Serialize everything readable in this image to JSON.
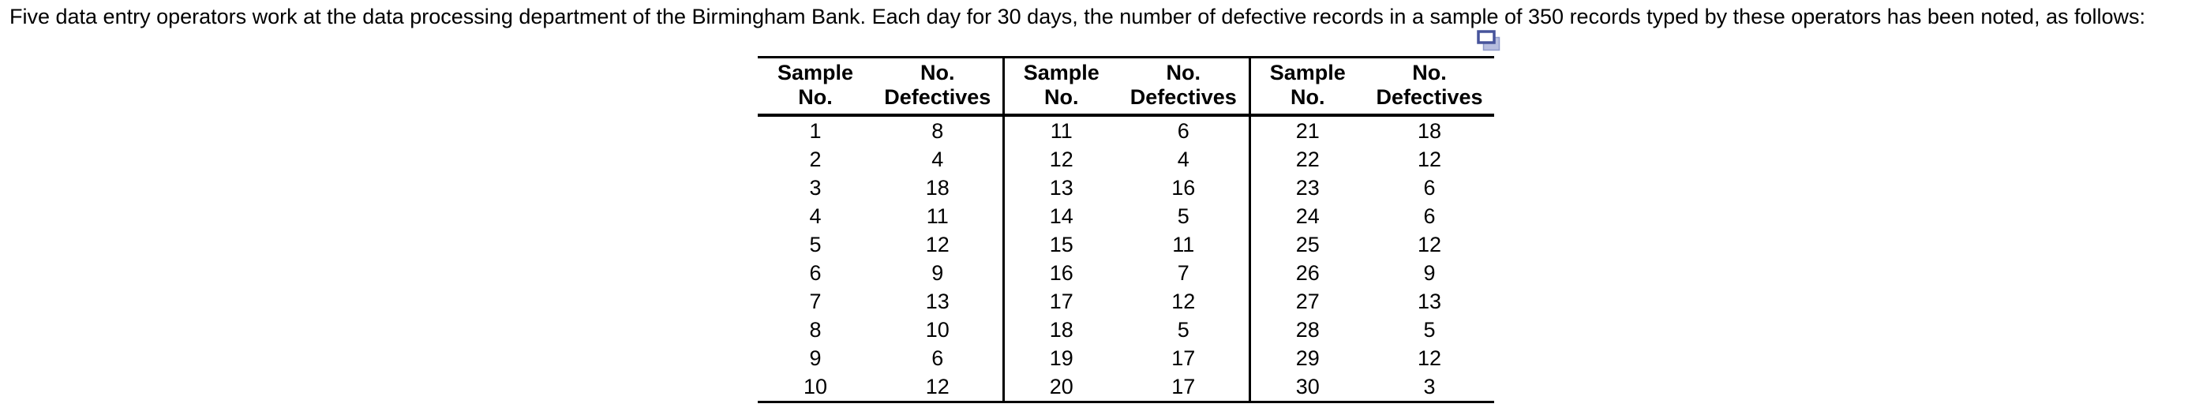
{
  "problem_text": "Five data entry operators work at the data processing department of the Birmingham Bank. Each day for 30 days, the number of defective records in a sample of 350 records typed by these operators has been noted, as follows:",
  "icon": {
    "name": "copy-icon"
  },
  "colors": {
    "text": "#000000",
    "table_rule": "#000000",
    "icon_front_border": "#47549b",
    "icon_front_fill": "#ffffff",
    "icon_back_fill": "#b7bedf",
    "icon_back_border": "#8e99c9"
  },
  "table": {
    "headers": [
      {
        "line1": "Sample",
        "line2": "No."
      },
      {
        "line1": "No.",
        "line2": "Defectives"
      },
      {
        "line1": "Sample",
        "line2": "No."
      },
      {
        "line1": "No.",
        "line2": "Defectives"
      },
      {
        "line1": "Sample",
        "line2": "No."
      },
      {
        "line1": "No.",
        "line2": "Defectives"
      }
    ],
    "rows": [
      [
        "1",
        "8",
        "11",
        "6",
        "21",
        "18"
      ],
      [
        "2",
        "4",
        "12",
        "4",
        "22",
        "12"
      ],
      [
        "3",
        "18",
        "13",
        "16",
        "23",
        "6"
      ],
      [
        "4",
        "11",
        "14",
        "5",
        "24",
        "6"
      ],
      [
        "5",
        "12",
        "15",
        "11",
        "25",
        "12"
      ],
      [
        "6",
        "9",
        "16",
        "7",
        "26",
        "9"
      ],
      [
        "7",
        "13",
        "17",
        "12",
        "27",
        "13"
      ],
      [
        "8",
        "10",
        "18",
        "5",
        "28",
        "5"
      ],
      [
        "9",
        "6",
        "19",
        "17",
        "29",
        "12"
      ],
      [
        "10",
        "12",
        "20",
        "17",
        "30",
        "3"
      ]
    ]
  }
}
